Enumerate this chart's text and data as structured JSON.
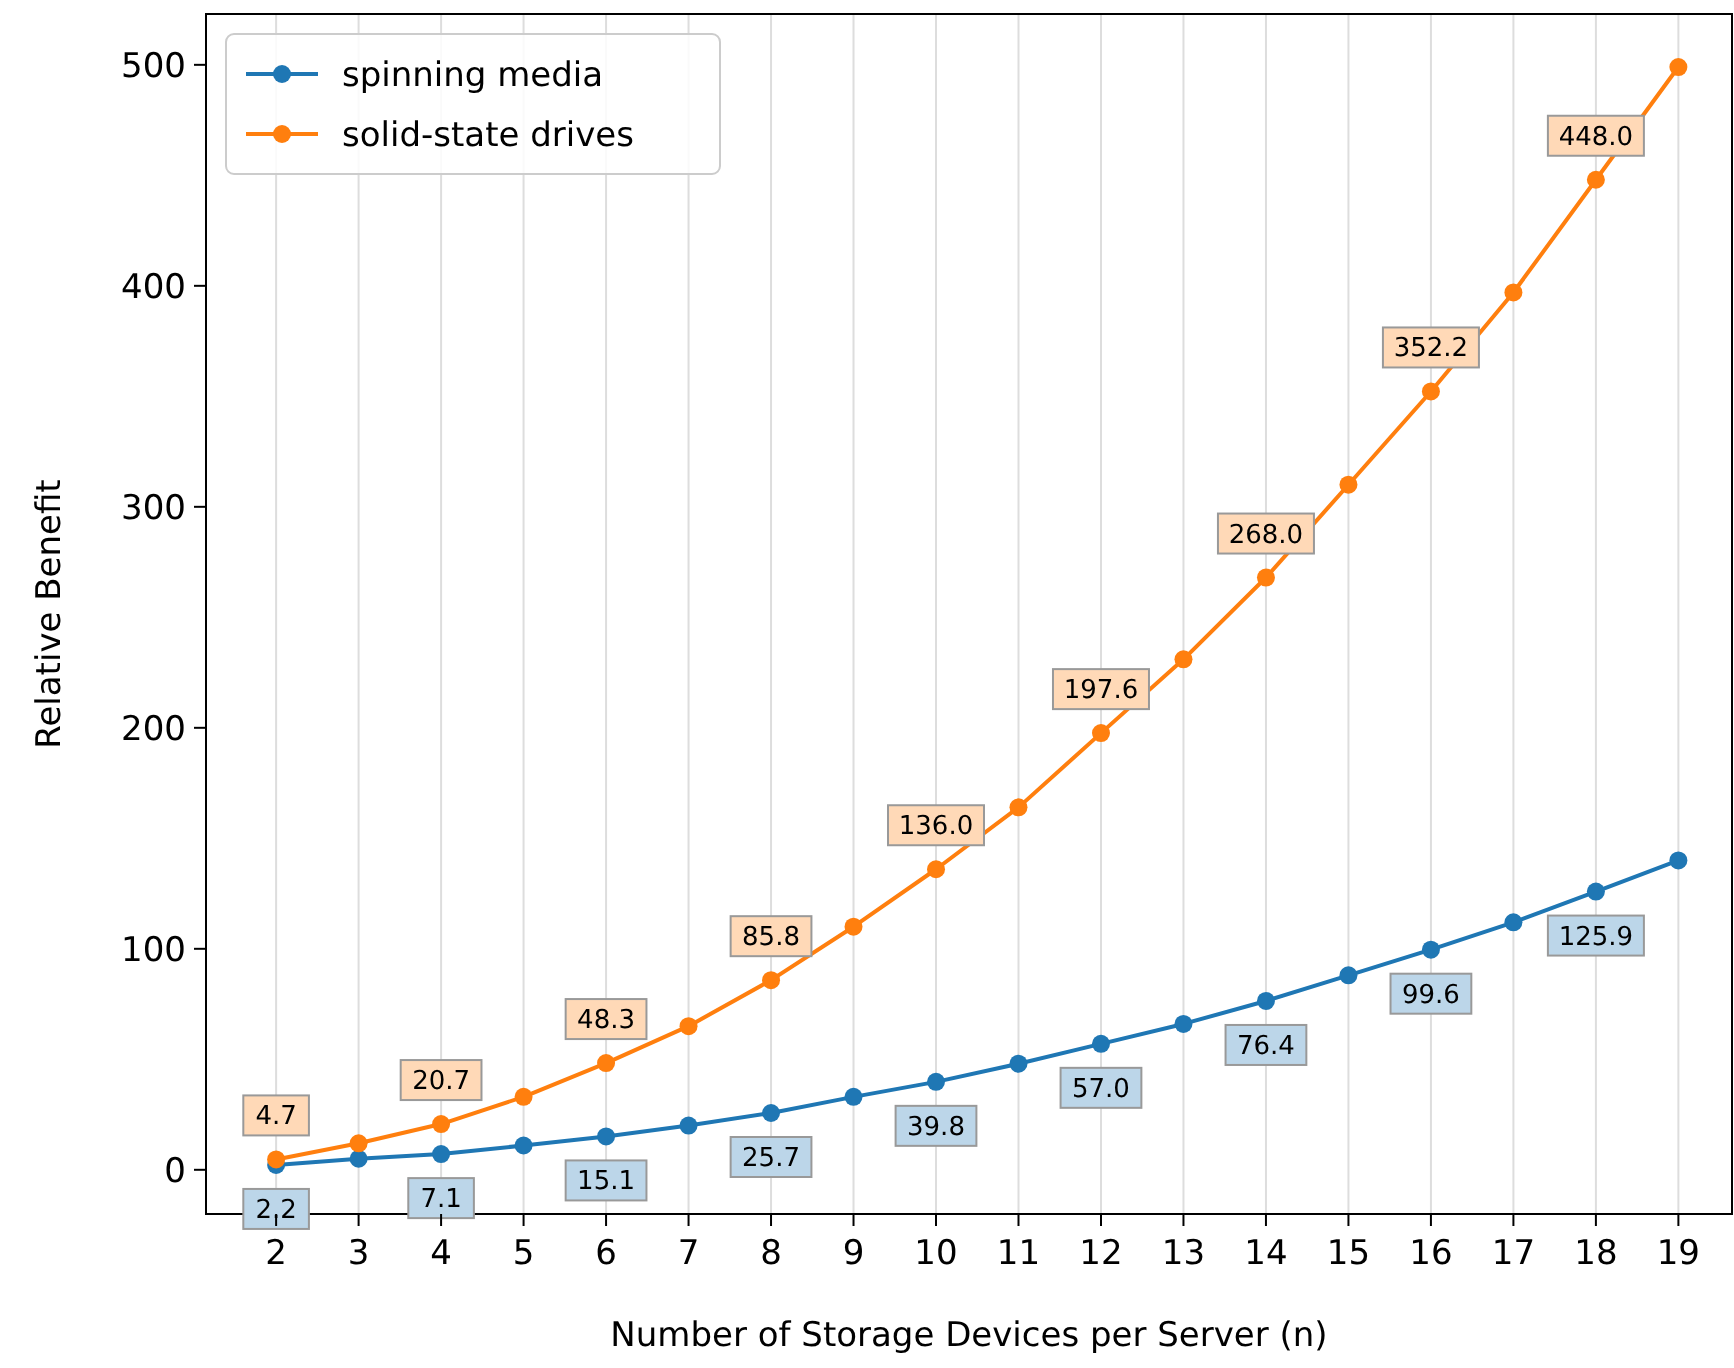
{
  "chart_data": {
    "type": "line",
    "xlabel": "Number of Storage Devices per Server (n)",
    "ylabel": "Relative Benefit",
    "x": [
      2,
      3,
      4,
      5,
      6,
      7,
      8,
      9,
      10,
      11,
      12,
      13,
      14,
      15,
      16,
      17,
      18,
      19
    ],
    "series": [
      {
        "name": "spinning media",
        "color": "#1f77b4",
        "values": [
          2.2,
          5,
          7.1,
          11,
          15.1,
          20,
          25.7,
          33,
          39.8,
          48,
          57.0,
          66,
          76.4,
          88,
          99.6,
          112,
          125.9,
          140
        ],
        "value_labels": [
          "2.2",
          null,
          "7.1",
          null,
          "15.1",
          null,
          "25.7",
          null,
          "39.8",
          null,
          "57.0",
          null,
          "76.4",
          null,
          "99.6",
          null,
          "125.9",
          null
        ]
      },
      {
        "name": "solid-state drives",
        "color": "#ff7f0e",
        "values": [
          4.7,
          12,
          20.7,
          33,
          48.3,
          65,
          85.8,
          110,
          136.0,
          164,
          197.6,
          231,
          268.0,
          310,
          352.2,
          397,
          448.0,
          499
        ],
        "value_labels": [
          "4.7",
          null,
          "20.7",
          null,
          "48.3",
          null,
          "85.8",
          null,
          "136.0",
          null,
          "197.6",
          null,
          "268.0",
          null,
          "352.2",
          null,
          "448.0",
          null
        ]
      }
    ],
    "xlim": [
      1.15,
      19.65
    ],
    "xticks": [
      2,
      3,
      4,
      5,
      6,
      7,
      8,
      9,
      10,
      11,
      12,
      13,
      14,
      15,
      16,
      17,
      18,
      19
    ],
    "ylim": [
      -20,
      523
    ],
    "yticks": [
      0,
      100,
      200,
      300,
      400,
      500
    ],
    "grid": "x",
    "legend": "top left",
    "marker": "circle",
    "line_style": "solid"
  }
}
